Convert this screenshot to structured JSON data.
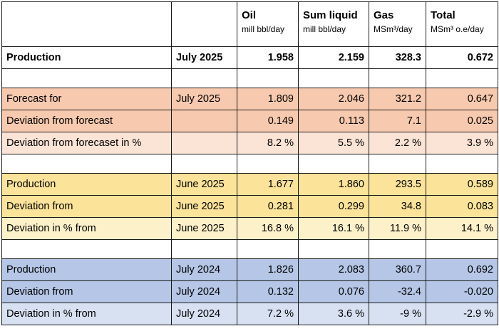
{
  "headers": [
    {
      "main": "",
      "unit": ""
    },
    {
      "main": "",
      "unit": ""
    },
    {
      "main": "Oil",
      "unit": "mill bbl/day"
    },
    {
      "main": "Sum liquid",
      "unit": "mill bbl/day"
    },
    {
      "main": "Gas",
      "unit": "MSm³/day"
    },
    {
      "main": "Total",
      "unit": "MSm³ o.e/day"
    }
  ],
  "rows": [
    {
      "label": "Production",
      "period": "July 2025",
      "oil": "1.958",
      "liquid": "2.159",
      "gas": "328.3",
      "total": "0.672"
    },
    {
      "label": "Forecast for",
      "period": "July 2025",
      "oil": "1.809",
      "liquid": "2.046",
      "gas": "321.2",
      "total": "0.647"
    },
    {
      "label": "Deviation from forecast",
      "period": "",
      "oil": "0.149",
      "liquid": "0.113",
      "gas": "7.1",
      "total": "0.025"
    },
    {
      "label": "Deviation from forecaset in %",
      "period": "",
      "oil": "8.2 %",
      "liquid": "5.5 %",
      "gas": "2.2 %",
      "total": "3.9 %"
    },
    {
      "label": "Production",
      "period": "June 2025",
      "oil": "1.677",
      "liquid": "1.860",
      "gas": "293.5",
      "total": "0.589"
    },
    {
      "label": "Deviation from",
      "period": "June 2025",
      "oil": "0.281",
      "liquid": "0.299",
      "gas": "34.8",
      "total": "0.083"
    },
    {
      "label": "Deviation in % from",
      "period": "June 2025",
      "oil": "16.8 %",
      "liquid": "16.1 %",
      "gas": "11.9 %",
      "total": "14.1 %"
    },
    {
      "label": "Production",
      "period": "July 2024",
      "oil": "1.826",
      "liquid": "2.083",
      "gas": "360.7",
      "total": "0.692"
    },
    {
      "label": "Deviation from",
      "period": "July 2024",
      "oil": "0.132",
      "liquid": "0.076",
      "gas": "-32.4",
      "total": "-0.020"
    },
    {
      "label": "Deviation in % from",
      "period": "July 2024",
      "oil": "7.2 %",
      "liquid": "3.6 %",
      "gas": "-9 %",
      "total": "-2.9 %"
    }
  ],
  "colors": {
    "salmon": "#f7c9ae",
    "salmon_light": "#fbe3d5",
    "yellow": "#fbe399",
    "yellow_light": "#fdf1c9",
    "blue": "#b5c6e6",
    "blue_light": "#d8e1f2"
  }
}
